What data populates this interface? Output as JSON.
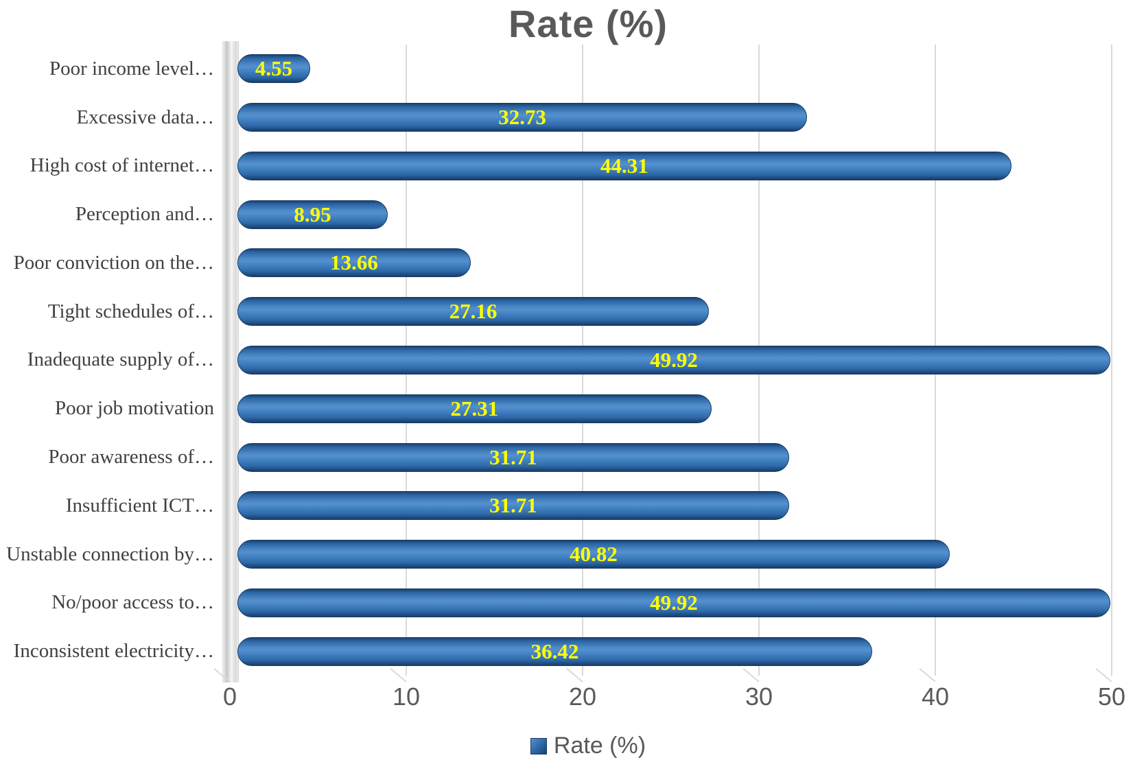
{
  "title": "Rate (%)",
  "legend": {
    "label": "Rate (%)"
  },
  "colors": {
    "bar_main": "#3B78B5",
    "bar_dark": "#17406F",
    "data_label": "#FFFF00",
    "gridline": "#D9D9D9",
    "axis_text": "#595959",
    "category_text": "#404040"
  },
  "chart_data": {
    "type": "bar",
    "orientation": "horizontal",
    "title": "Rate (%)",
    "categories": [
      "Poor income level…",
      "Excessive data…",
      "High cost of internet…",
      "Perception and…",
      "Poor conviction on the…",
      "Tight schedules of…",
      "Inadequate supply of…",
      "Poor job motivation",
      "Poor awareness of…",
      "Insufficient ICT…",
      "Unstable connection by…",
      "No/poor access to…",
      "Inconsistent electricity…"
    ],
    "values": [
      4.55,
      32.73,
      44.31,
      8.95,
      13.66,
      27.16,
      49.92,
      27.31,
      31.71,
      31.71,
      40.82,
      49.92,
      36.42
    ],
    "series": [
      {
        "name": "Rate (%)",
        "values": [
          4.55,
          32.73,
          44.31,
          8.95,
          13.66,
          27.16,
          49.92,
          27.31,
          31.71,
          31.71,
          40.82,
          49.92,
          36.42
        ]
      }
    ],
    "xlim": [
      0,
      50
    ],
    "x_ticks": [
      0,
      10,
      20,
      30,
      40,
      50
    ],
    "xlabel": "",
    "ylabel": "",
    "grid": true,
    "legend_entries": [
      "Rate (%)"
    ],
    "legend_position": "bottom",
    "data_labels": "center",
    "data_label_color": "#FFFF00"
  }
}
